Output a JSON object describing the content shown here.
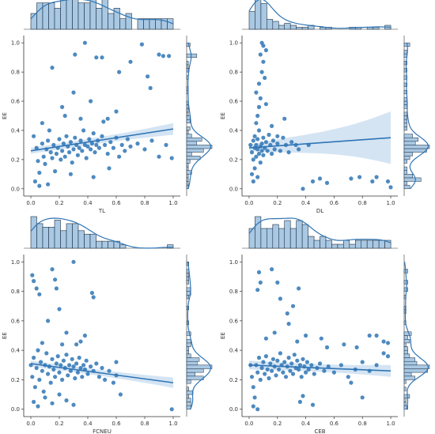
{
  "colors": {
    "point": "#2f75b5",
    "line": "#2f75b5",
    "band": "#c6dbef",
    "hist_fill": "#a9c8e3",
    "hist_edge": "#1f2f40",
    "kde": "#2f75b5",
    "axis": "#333333"
  },
  "chart_data": [
    {
      "type": "scatter",
      "xlabel": "TL",
      "ylabel": "EE",
      "xlim": [
        -0.05,
        1.05
      ],
      "ylim": [
        -0.05,
        1.05
      ],
      "xticks": [
        "0.0",
        "0.2",
        "0.4",
        "0.6",
        "0.8",
        "1.0"
      ],
      "yticks": [
        "0.0",
        "0.2",
        "0.4",
        "0.6",
        "0.8",
        "1.0"
      ],
      "regression": {
        "x": [
          0.0,
          1.0
        ],
        "y": [
          0.26,
          0.41
        ],
        "ci_low_end": [
          0.24,
          0.37
        ],
        "ci_high_end": [
          0.28,
          0.45
        ]
      },
      "points": [
        [
          0.02,
          0.36
        ],
        [
          0.04,
          0.28
        ],
        [
          0.05,
          0.19
        ],
        [
          0.06,
          0.11
        ],
        [
          0.03,
          0.05
        ],
        [
          0.08,
          0.31
        ],
        [
          0.09,
          0.22
        ],
        [
          0.1,
          0.17
        ],
        [
          0.11,
          0.27
        ],
        [
          0.12,
          0.33
        ],
        [
          0.13,
          0.4
        ],
        [
          0.14,
          0.25
        ],
        [
          0.15,
          0.21
        ],
        [
          0.16,
          0.3
        ],
        [
          0.17,
          0.12
        ],
        [
          0.18,
          0.24
        ],
        [
          0.19,
          0.28
        ],
        [
          0.2,
          0.34
        ],
        [
          0.21,
          0.2
        ],
        [
          0.22,
          0.26
        ],
        [
          0.23,
          0.31
        ],
        [
          0.24,
          0.22
        ],
        [
          0.25,
          0.36
        ],
        [
          0.26,
          0.29
        ],
        [
          0.27,
          0.25
        ],
        [
          0.28,
          0.32
        ],
        [
          0.29,
          0.18
        ],
        [
          0.3,
          0.27
        ],
        [
          0.31,
          0.35
        ],
        [
          0.32,
          0.3
        ],
        [
          0.33,
          0.23
        ],
        [
          0.34,
          0.28
        ],
        [
          0.35,
          0.33
        ],
        [
          0.36,
          0.26
        ],
        [
          0.37,
          0.4
        ],
        [
          0.38,
          0.3
        ],
        [
          0.39,
          0.21
        ],
        [
          0.4,
          0.29
        ],
        [
          0.41,
          0.34
        ],
        [
          0.42,
          0.27
        ],
        [
          0.43,
          0.31
        ],
        [
          0.44,
          0.38
        ],
        [
          0.45,
          0.25
        ],
        [
          0.46,
          0.3
        ],
        [
          0.47,
          0.33
        ],
        [
          0.48,
          0.28
        ],
        [
          0.5,
          0.36
        ],
        [
          0.52,
          0.3
        ],
        [
          0.54,
          0.24
        ],
        [
          0.56,
          0.32
        ],
        [
          0.58,
          0.28
        ],
        [
          0.6,
          0.35
        ],
        [
          0.62,
          0.22
        ],
        [
          0.64,
          0.3
        ],
        [
          0.66,
          0.26
        ],
        [
          0.68,
          0.34
        ],
        [
          0.7,
          0.29
        ],
        [
          0.75,
          0.31
        ],
        [
          0.8,
          0.27
        ],
        [
          0.85,
          0.33
        ],
        [
          0.9,
          0.22
        ],
        [
          0.95,
          0.3
        ],
        [
          0.99,
          0.21
        ],
        [
          0.15,
          0.83
        ],
        [
          0.22,
          0.56
        ],
        [
          0.3,
          0.66
        ],
        [
          0.31,
          0.92
        ],
        [
          0.38,
          1.0
        ],
        [
          0.46,
          0.9
        ],
        [
          0.5,
          0.9
        ],
        [
          0.51,
          0.46
        ],
        [
          0.62,
          0.8
        ],
        [
          0.7,
          0.87
        ],
        [
          0.78,
          0.99
        ],
        [
          0.82,
          0.77
        ],
        [
          0.84,
          0.69
        ],
        [
          0.9,
          0.92
        ],
        [
          0.93,
          0.91
        ],
        [
          0.97,
          0.91
        ],
        [
          0.54,
          0.48
        ],
        [
          0.24,
          0.5
        ],
        [
          0.42,
          0.6
        ],
        [
          0.35,
          0.48
        ],
        [
          0.08,
          0.45
        ],
        [
          0.6,
          0.53
        ],
        [
          0.28,
          0.1
        ],
        [
          0.44,
          0.08
        ],
        [
          0.55,
          0.14
        ],
        [
          0.12,
          0.03
        ],
        [
          0.06,
          0.02
        ]
      ]
    },
    {
      "type": "scatter",
      "xlabel": "DL",
      "ylabel": "EE",
      "xlim": [
        -0.05,
        1.05
      ],
      "ylim": [
        -0.05,
        1.05
      ],
      "xticks": [
        "0.0",
        "0.2",
        "0.4",
        "0.6",
        "0.8",
        "1.0"
      ],
      "yticks": [
        "0.0",
        "0.2",
        "0.4",
        "0.6",
        "0.8",
        "1.0"
      ],
      "regression": {
        "x": [
          0.0,
          1.0
        ],
        "y": [
          0.28,
          0.35
        ],
        "ci_low_end": [
          0.26,
          0.17
        ],
        "ci_high_end": [
          0.3,
          0.53
        ]
      },
      "points": [
        [
          0.01,
          0.3
        ],
        [
          0.02,
          0.25
        ],
        [
          0.03,
          0.33
        ],
        [
          0.03,
          0.2
        ],
        [
          0.04,
          0.28
        ],
        [
          0.04,
          0.36
        ],
        [
          0.05,
          0.22
        ],
        [
          0.05,
          0.3
        ],
        [
          0.06,
          0.27
        ],
        [
          0.06,
          0.34
        ],
        [
          0.07,
          0.24
        ],
        [
          0.07,
          0.4
        ],
        [
          0.08,
          0.29
        ],
        [
          0.08,
          0.18
        ],
        [
          0.09,
          0.31
        ],
        [
          0.09,
          0.26
        ],
        [
          0.1,
          0.35
        ],
        [
          0.1,
          0.23
        ],
        [
          0.11,
          0.28
        ],
        [
          0.12,
          0.32
        ],
        [
          0.13,
          0.26
        ],
        [
          0.14,
          0.37
        ],
        [
          0.15,
          0.3
        ],
        [
          0.16,
          0.24
        ],
        [
          0.17,
          0.33
        ],
        [
          0.18,
          0.27
        ],
        [
          0.2,
          0.31
        ],
        [
          0.22,
          0.26
        ],
        [
          0.24,
          0.35
        ],
        [
          0.26,
          0.3
        ],
        [
          0.28,
          0.25
        ],
        [
          0.3,
          0.32
        ],
        [
          0.02,
          0.1
        ],
        [
          0.03,
          0.05
        ],
        [
          0.04,
          0.14
        ],
        [
          0.06,
          0.08
        ],
        [
          0.05,
          0.45
        ],
        [
          0.06,
          0.5
        ],
        [
          0.07,
          0.56
        ],
        [
          0.08,
          0.62
        ],
        [
          0.07,
          0.72
        ],
        [
          0.09,
          0.8
        ],
        [
          0.1,
          0.87
        ],
        [
          0.08,
          0.92
        ],
        [
          0.1,
          0.98
        ],
        [
          0.12,
          0.95
        ],
        [
          0.09,
          1.0
        ],
        [
          0.11,
          0.76
        ],
        [
          0.05,
          0.66
        ],
        [
          0.12,
          0.58
        ],
        [
          0.25,
          0.48
        ],
        [
          0.16,
          0.43
        ],
        [
          0.2,
          0.36
        ],
        [
          0.33,
          0.3
        ],
        [
          0.35,
          0.27
        ],
        [
          0.42,
          0.3
        ],
        [
          0.45,
          0.05
        ],
        [
          0.5,
          0.07
        ],
        [
          0.55,
          0.04
        ],
        [
          0.72,
          0.07
        ],
        [
          0.78,
          0.08
        ],
        [
          0.87,
          0.05
        ],
        [
          0.9,
          0.08
        ],
        [
          0.98,
          0.05
        ],
        [
          1.0,
          0.01
        ],
        [
          0.38,
          0.0
        ]
      ]
    },
    {
      "type": "scatter",
      "xlabel": "FCNEU",
      "ylabel": "EE",
      "xlim": [
        -0.05,
        1.05
      ],
      "ylim": [
        -0.05,
        1.05
      ],
      "xticks": [
        "0.0",
        "0.2",
        "0.4",
        "0.6",
        "0.8",
        "1.0"
      ],
      "yticks": [
        "0.0",
        "0.2",
        "0.4",
        "0.6",
        "0.8",
        "1.0"
      ],
      "regression": {
        "x": [
          0.0,
          1.0
        ],
        "y": [
          0.31,
          0.18
        ],
        "ci_low_end": [
          0.29,
          0.15
        ],
        "ci_high_end": [
          0.33,
          0.22
        ]
      },
      "points": [
        [
          0.0,
          0.3
        ],
        [
          0.01,
          0.22
        ],
        [
          0.02,
          0.35
        ],
        [
          0.03,
          0.15
        ],
        [
          0.04,
          0.28
        ],
        [
          0.05,
          0.4
        ],
        [
          0.06,
          0.2
        ],
        [
          0.07,
          0.32
        ],
        [
          0.08,
          0.26
        ],
        [
          0.09,
          0.12
        ],
        [
          0.1,
          0.3
        ],
        [
          0.11,
          0.38
        ],
        [
          0.12,
          0.24
        ],
        [
          0.13,
          0.29
        ],
        [
          0.14,
          0.18
        ],
        [
          0.15,
          0.34
        ],
        [
          0.16,
          0.27
        ],
        [
          0.17,
          0.22
        ],
        [
          0.18,
          0.31
        ],
        [
          0.19,
          0.36
        ],
        [
          0.2,
          0.25
        ],
        [
          0.21,
          0.3
        ],
        [
          0.22,
          0.2
        ],
        [
          0.23,
          0.33
        ],
        [
          0.24,
          0.28
        ],
        [
          0.25,
          0.37
        ],
        [
          0.26,
          0.23
        ],
        [
          0.27,
          0.3
        ],
        [
          0.28,
          0.26
        ],
        [
          0.29,
          0.34
        ],
        [
          0.3,
          0.29
        ],
        [
          0.31,
          0.21
        ],
        [
          0.32,
          0.31
        ],
        [
          0.33,
          0.25
        ],
        [
          0.34,
          0.35
        ],
        [
          0.35,
          0.28
        ],
        [
          0.36,
          0.22
        ],
        [
          0.37,
          0.3
        ],
        [
          0.38,
          0.27
        ],
        [
          0.39,
          0.33
        ],
        [
          0.4,
          0.24
        ],
        [
          0.42,
          0.29
        ],
        [
          0.44,
          0.26
        ],
        [
          0.46,
          0.31
        ],
        [
          0.48,
          0.22
        ],
        [
          0.5,
          0.28
        ],
        [
          0.52,
          0.2
        ],
        [
          0.55,
          0.26
        ],
        [
          0.58,
          0.18
        ],
        [
          0.6,
          0.23
        ],
        [
          0.02,
          0.05
        ],
        [
          0.05,
          0.02
        ],
        [
          0.1,
          0.08
        ],
        [
          0.15,
          0.04
        ],
        [
          0.2,
          0.1
        ],
        [
          0.25,
          0.06
        ],
        [
          0.3,
          0.03
        ],
        [
          0.01,
          0.91
        ],
        [
          0.02,
          0.87
        ],
        [
          0.04,
          0.82
        ],
        [
          0.06,
          0.78
        ],
        [
          0.15,
          0.95
        ],
        [
          0.18,
          0.82
        ],
        [
          0.17,
          0.88
        ],
        [
          0.2,
          0.68
        ],
        [
          0.3,
          1.0
        ],
        [
          0.43,
          0.79
        ],
        [
          0.44,
          0.76
        ],
        [
          0.12,
          0.6
        ],
        [
          0.25,
          0.52
        ],
        [
          0.38,
          0.5
        ],
        [
          0.22,
          0.44
        ],
        [
          0.08,
          0.45
        ],
        [
          0.32,
          0.44
        ],
        [
          0.35,
          0.46
        ],
        [
          0.6,
          0.32
        ],
        [
          0.63,
          0.1
        ],
        [
          0.99,
          0.0
        ]
      ]
    },
    {
      "type": "scatter",
      "xlabel": "CEB",
      "ylabel": "EE",
      "xlim": [
        -0.05,
        1.05
      ],
      "ylim": [
        -0.05,
        1.05
      ],
      "xticks": [
        "0.0",
        "0.2",
        "0.4",
        "0.6",
        "0.8",
        "1.0"
      ],
      "yticks": [
        "0.0",
        "0.2",
        "0.4",
        "0.6",
        "0.8",
        "1.0"
      ],
      "regression": {
        "x": [
          0.0,
          1.0
        ],
        "y": [
          0.3,
          0.26
        ],
        "ci_low_end": [
          0.27,
          0.22
        ],
        "ci_high_end": [
          0.33,
          0.3
        ]
      },
      "points": [
        [
          0.01,
          0.3
        ],
        [
          0.02,
          0.22
        ],
        [
          0.03,
          0.15
        ],
        [
          0.04,
          0.08
        ],
        [
          0.05,
          0.3
        ],
        [
          0.06,
          0.25
        ],
        [
          0.07,
          0.35
        ],
        [
          0.08,
          0.2
        ],
        [
          0.09,
          0.28
        ],
        [
          0.1,
          0.32
        ],
        [
          0.11,
          0.24
        ],
        [
          0.12,
          0.36
        ],
        [
          0.13,
          0.27
        ],
        [
          0.14,
          0.21
        ],
        [
          0.15,
          0.31
        ],
        [
          0.16,
          0.26
        ],
        [
          0.17,
          0.34
        ],
        [
          0.18,
          0.29
        ],
        [
          0.19,
          0.23
        ],
        [
          0.2,
          0.33
        ],
        [
          0.21,
          0.27
        ],
        [
          0.22,
          0.38
        ],
        [
          0.23,
          0.3
        ],
        [
          0.24,
          0.25
        ],
        [
          0.25,
          0.32
        ],
        [
          0.26,
          0.22
        ],
        [
          0.27,
          0.29
        ],
        [
          0.28,
          0.35
        ],
        [
          0.29,
          0.26
        ],
        [
          0.3,
          0.31
        ],
        [
          0.31,
          0.24
        ],
        [
          0.32,
          0.37
        ],
        [
          0.33,
          0.28
        ],
        [
          0.34,
          0.33
        ],
        [
          0.35,
          0.27
        ],
        [
          0.36,
          0.3
        ],
        [
          0.37,
          0.22
        ],
        [
          0.38,
          0.34
        ],
        [
          0.39,
          0.29
        ],
        [
          0.4,
          0.25
        ],
        [
          0.41,
          0.32
        ],
        [
          0.42,
          0.27
        ],
        [
          0.44,
          0.3
        ],
        [
          0.46,
          0.24
        ],
        [
          0.48,
          0.28
        ],
        [
          0.5,
          0.31
        ],
        [
          0.53,
          0.26
        ],
        [
          0.56,
          0.29
        ],
        [
          0.6,
          0.25
        ],
        [
          0.65,
          0.3
        ],
        [
          0.7,
          0.22
        ],
        [
          0.75,
          0.27
        ],
        [
          0.8,
          0.32
        ],
        [
          0.85,
          0.26
        ],
        [
          0.9,
          0.3
        ],
        [
          0.95,
          0.38
        ],
        [
          0.98,
          0.36
        ],
        [
          0.03,
          0.02
        ],
        [
          0.06,
          0.0
        ],
        [
          0.36,
          0.05
        ],
        [
          0.38,
          0.09
        ],
        [
          0.45,
          0.03
        ],
        [
          0.07,
          0.93
        ],
        [
          0.08,
          0.86
        ],
        [
          0.06,
          0.81
        ],
        [
          0.16,
          0.95
        ],
        [
          0.2,
          0.86
        ],
        [
          0.22,
          0.75
        ],
        [
          0.35,
          0.82
        ],
        [
          0.31,
          0.7
        ],
        [
          0.27,
          0.65
        ],
        [
          0.28,
          0.58
        ],
        [
          0.12,
          0.48
        ],
        [
          0.18,
          0.52
        ],
        [
          0.4,
          0.5
        ],
        [
          0.34,
          0.46
        ],
        [
          0.51,
          0.48
        ],
        [
          0.55,
          0.42
        ],
        [
          0.67,
          0.44
        ],
        [
          0.98,
          0.45
        ],
        [
          0.95,
          0.46
        ],
        [
          0.9,
          0.5
        ],
        [
          0.85,
          0.5
        ],
        [
          0.76,
          0.42
        ],
        [
          0.72,
          0.18
        ],
        [
          0.8,
          0.08
        ]
      ]
    }
  ]
}
